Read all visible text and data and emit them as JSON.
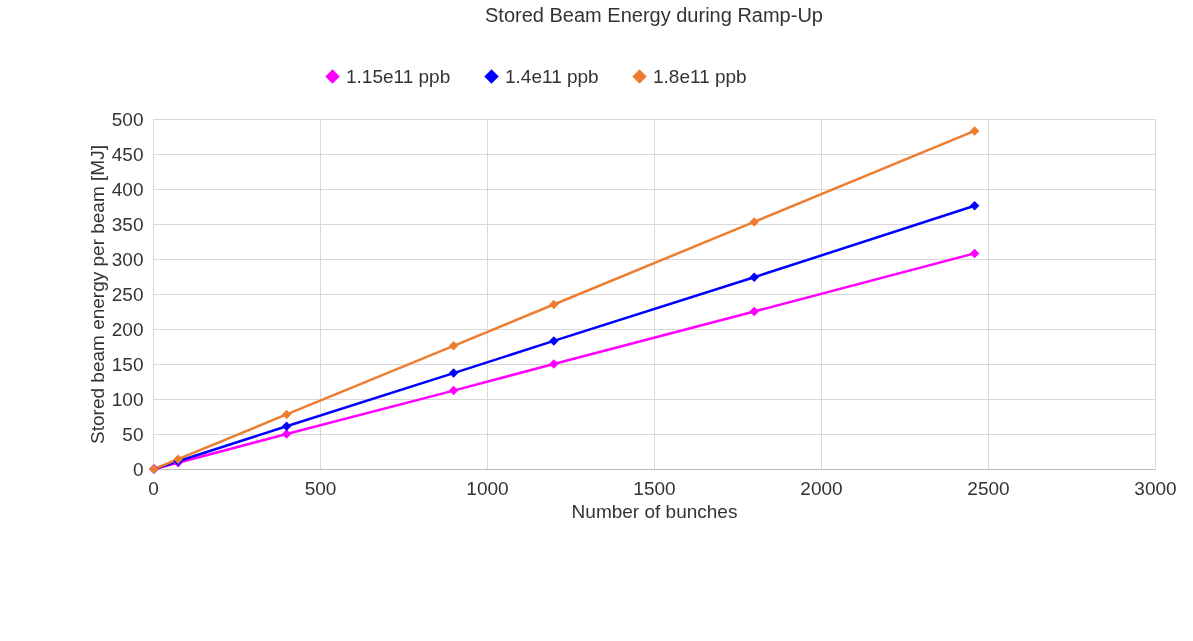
{
  "chart_data": {
    "type": "line",
    "title": "Stored Beam Energy during Ramp-Up",
    "xlabel": "Number of bunches",
    "ylabel": "Stored beam energy per beam  [MJ]",
    "x": [
      3,
      75,
      400,
      900,
      1200,
      1800,
      2460
    ],
    "series": [
      {
        "name": "1.15e11 ppb",
        "color": "#ff00ff",
        "values": [
          0,
          9,
          50,
          112,
          150,
          225,
          308
        ]
      },
      {
        "name": "1.4e11 ppb",
        "color": "#0000ff",
        "values": [
          0,
          11,
          61,
          137,
          183,
          274,
          376
        ]
      },
      {
        "name": "1.8e11 ppb",
        "color": "#ed7d31",
        "values": [
          0,
          14,
          78,
          176,
          235,
          353,
          483
        ]
      }
    ],
    "xlim": [
      0,
      3000
    ],
    "xticks": [
      0,
      500,
      1000,
      1500,
      2000,
      2500,
      3000
    ],
    "ylim": [
      0,
      500
    ],
    "yticks": [
      0,
      50,
      100,
      150,
      200,
      250,
      300,
      350,
      400,
      450,
      500
    ],
    "grid": true,
    "legend": "top",
    "marker": "diamond",
    "line_style": "solid"
  }
}
